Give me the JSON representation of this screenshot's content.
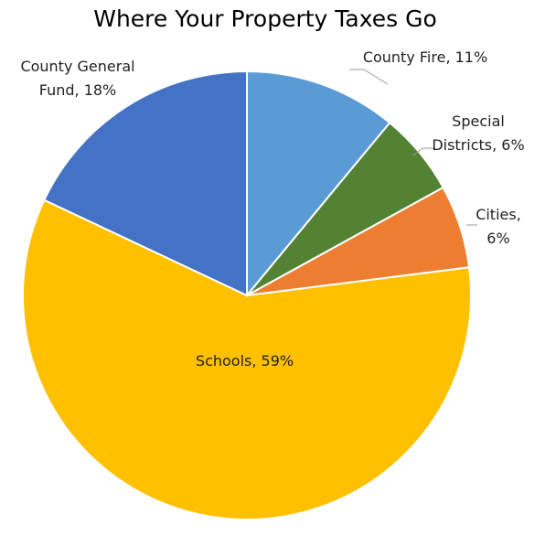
{
  "chart_data": {
    "type": "pie",
    "title": "Where Your Property Taxes Go",
    "values": [
      11,
      6,
      6,
      59,
      18
    ],
    "value_labels": [
      "County Fire, 11%",
      "Special Districts, 6%",
      "Cities, 6%",
      "Schools, 59%",
      "County General Fund, 18%"
    ],
    "colors": [
      "#5b9bd5",
      "#548235",
      "#ed7d31",
      "#ffc000",
      "#4472c4"
    ]
  }
}
